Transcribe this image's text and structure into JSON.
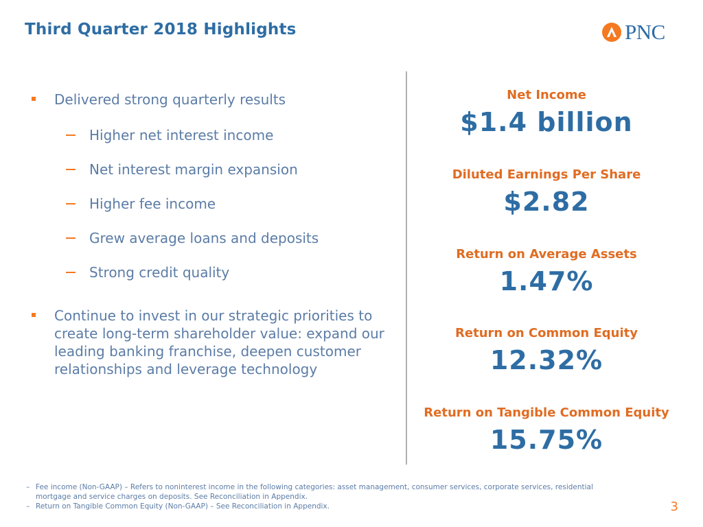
{
  "header": {
    "title": "Third Quarter 2018 Highlights",
    "logo_text": "PNC",
    "logo_icon": "pnc-logo-icon"
  },
  "bullets": {
    "main1": "Delivered strong quarterly results",
    "subs": [
      "Higher net interest income",
      "Net interest margin expansion",
      "Higher fee income",
      "Grew average loans and deposits",
      "Strong credit quality"
    ],
    "main2_lines": [
      "Continue to invest in our strategic priorities to",
      "create long-term shareholder value: expand our",
      "leading banking franchise, deepen customer",
      "relationships and leverage technology"
    ]
  },
  "metrics": [
    {
      "label": "Net Income",
      "value": "$1.4 billion"
    },
    {
      "label": "Diluted Earnings Per Share",
      "value": "$2.82"
    },
    {
      "label": "Return on Average Assets",
      "value": "1.47%"
    },
    {
      "label": "Return on Common Equity",
      "value": "12.32%"
    },
    {
      "label": "Return on Tangible Common Equity",
      "value": "15.75%"
    }
  ],
  "footnotes": {
    "dash": "–",
    "fn1_line1": "Fee income (Non-GAAP) – Refers to noninterest income in the following categories: asset management, consumer services, corporate services, residential",
    "fn1_line2": "mortgage and service charges on deposits. See Reconciliation in Appendix.",
    "fn2": "Return on Tangible Common Equity (Non-GAAP) – See Reconciliation in Appendix."
  },
  "page_number": "3",
  "colors": {
    "title_blue": "#2e6da4",
    "accent_orange": "#f47920",
    "label_orange": "#e06c22",
    "body_blue": "#5b7ca6"
  }
}
